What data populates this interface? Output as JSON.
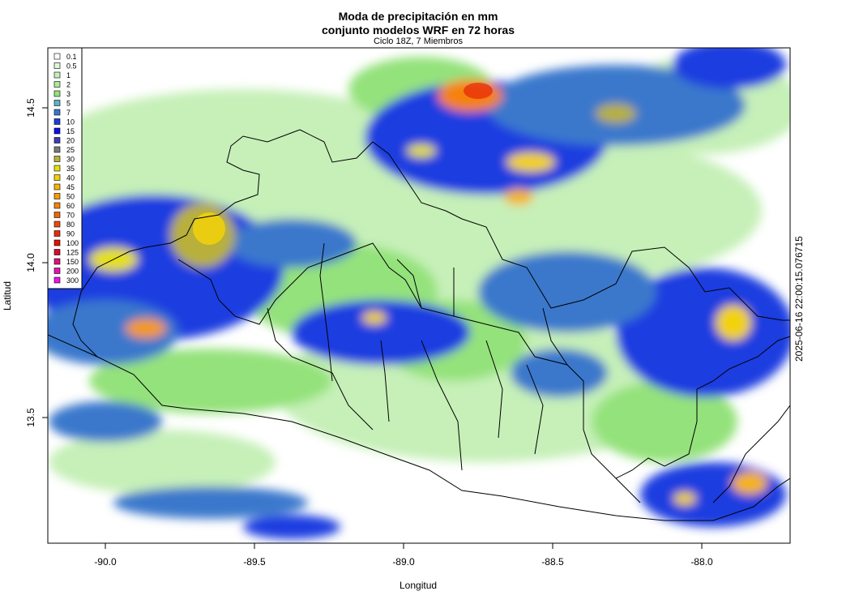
{
  "title_line1": "Moda de precipitación en mm",
  "title_line2": "conjunto modelos WRF en 72 horas",
  "subtitle": "Ciclo 18Z, 7 Miembros",
  "xlabel": "Longitud",
  "ylabel": "Latitud",
  "timestamp": "2025-06-16 22:00:15.076715",
  "x_ticks": [
    "-90.0",
    "-89.5",
    "-89.0",
    "-88.5",
    "-88.0"
  ],
  "y_ticks": [
    "14.5",
    "14.0",
    "13.5"
  ],
  "legend": [
    {
      "label": "0.1",
      "color": "#ffffff"
    },
    {
      "label": "0.5",
      "color": "#dff7d6"
    },
    {
      "label": "1",
      "color": "#c6f0b8"
    },
    {
      "label": "2",
      "color": "#ade99a"
    },
    {
      "label": "3",
      "color": "#94e27c"
    },
    {
      "label": "5",
      "color": "#5fb0c8"
    },
    {
      "label": "7",
      "color": "#3a78cc"
    },
    {
      "label": "10",
      "color": "#1c3ce0"
    },
    {
      "label": "15",
      "color": "#0a10e6"
    },
    {
      "label": "20",
      "color": "#3c3cb4"
    },
    {
      "label": "25",
      "color": "#7a7a7a"
    },
    {
      "label": "30",
      "color": "#b8b03a"
    },
    {
      "label": "35",
      "color": "#e6e00a"
    },
    {
      "label": "40",
      "color": "#f2d20a"
    },
    {
      "label": "45",
      "color": "#f5b40a"
    },
    {
      "label": "50",
      "color": "#f59a0a"
    },
    {
      "label": "60",
      "color": "#f5820a"
    },
    {
      "label": "70",
      "color": "#f0640a"
    },
    {
      "label": "80",
      "color": "#ec4a0a"
    },
    {
      "label": "90",
      "color": "#e82a0a"
    },
    {
      "label": "100",
      "color": "#e0100a"
    },
    {
      "label": "125",
      "color": "#d80a30"
    },
    {
      "label": "150",
      "color": "#e0107a"
    },
    {
      "label": "200",
      "color": "#e810b8"
    },
    {
      "label": "300",
      "color": "#f010e8"
    }
  ],
  "map_colors": {
    "water": "#ffffff",
    "light_green": "#c6f0b8",
    "green": "#94e27c",
    "blue": "#1c3ce0",
    "mid_blue": "#3a78cc",
    "yellow": "#f2d20a",
    "orange": "#f5820a"
  }
}
